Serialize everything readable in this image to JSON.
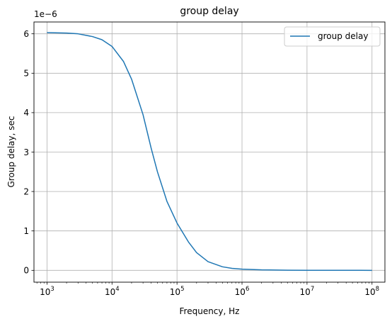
{
  "chart_data": {
    "type": "line",
    "title": "group delay",
    "xlabel": "Frequency, Hz",
    "ylabel": "Group delay, sec",
    "offset_text": "1e−6",
    "x_scale": "log",
    "xlim": [
      630,
      158000000
    ],
    "ylim": [
      -0.3,
      6.3
    ],
    "x_ticks": [
      1000,
      10000,
      100000,
      1000000,
      10000000,
      100000000
    ],
    "x_tick_labels": [
      {
        "base": "10",
        "exp": "3"
      },
      {
        "base": "10",
        "exp": "4"
      },
      {
        "base": "10",
        "exp": "5"
      },
      {
        "base": "10",
        "exp": "6"
      },
      {
        "base": "10",
        "exp": "7"
      },
      {
        "base": "10",
        "exp": "8"
      }
    ],
    "y_ticks": [
      0,
      1,
      2,
      3,
      4,
      5,
      6
    ],
    "y_tick_labels": [
      "0",
      "1",
      "2",
      "3",
      "4",
      "5",
      "6"
    ],
    "grid": true,
    "legend": {
      "position": "top-right"
    },
    "colors": {
      "series": "#1f77b4",
      "grid": "#b0b0b0"
    },
    "series": [
      {
        "name": "group delay",
        "x": [
          1000,
          2000,
          3000,
          5000,
          7000,
          10000,
          15000,
          20000,
          30000,
          40000,
          50000,
          70000,
          100000,
          150000,
          200000,
          300000,
          500000,
          700000,
          1000000,
          2000000,
          5000000,
          10000000,
          30000000,
          100000000
        ],
        "y": [
          6.03,
          6.02,
          6.0,
          5.93,
          5.85,
          5.68,
          5.3,
          4.85,
          3.95,
          3.1,
          2.5,
          1.75,
          1.2,
          0.72,
          0.45,
          0.22,
          0.09,
          0.05,
          0.03,
          0.012,
          0.004,
          0.002,
          0.001,
          0.0
        ]
      }
    ]
  }
}
